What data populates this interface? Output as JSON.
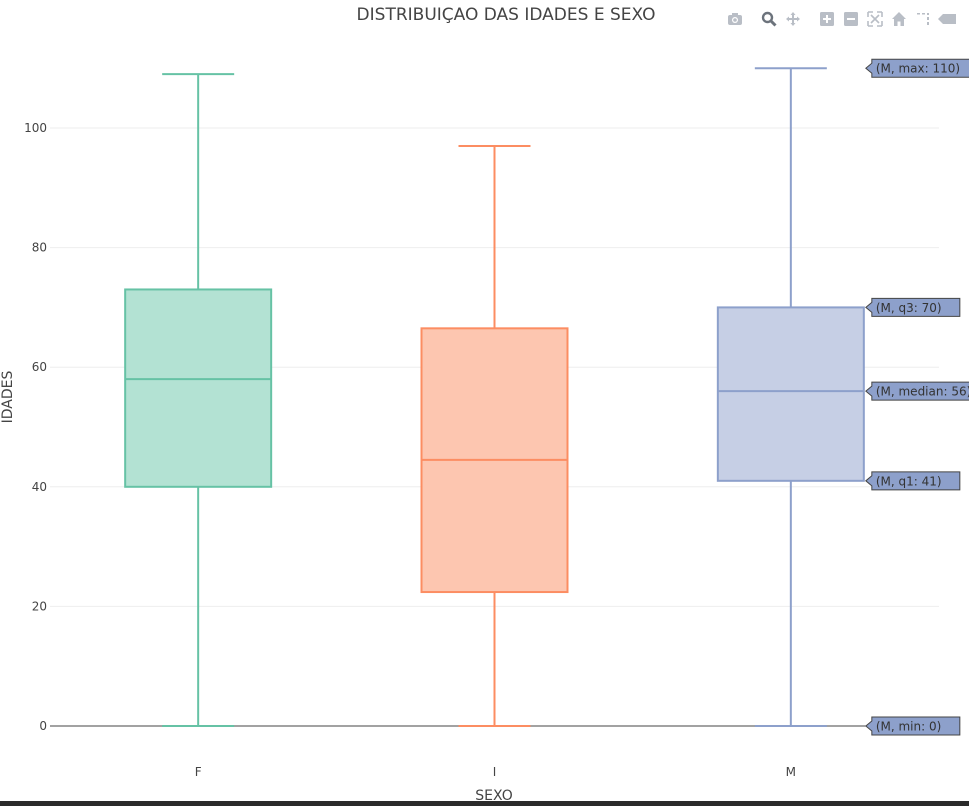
{
  "modebar": {
    "icons": [
      "camera-icon",
      "zoom-icon",
      "pan-icon",
      "zoom-in-icon",
      "zoom-out-icon",
      "autoscale-icon",
      "reset-axes-icon",
      "spike-lines-icon",
      "compare-hover-icon"
    ]
  },
  "chart_data": {
    "type": "box",
    "title": "DISTRIBUIÇAO DAS IDADES E SEXO",
    "xlabel": "SEXO",
    "ylabel": "IDADES",
    "ylim": [
      -5,
      113
    ],
    "yticks": [
      0,
      20,
      40,
      60,
      80,
      100
    ],
    "grid": true,
    "categories": [
      "F",
      "I",
      "M"
    ],
    "series": [
      {
        "category": "F",
        "min": 0,
        "q1": 40,
        "median": 58,
        "q3": 73,
        "max": 109,
        "color": "#66c2a5",
        "fill": "#b3e2d3"
      },
      {
        "category": "I",
        "min": 0,
        "q1": 22.4,
        "median": 44.5,
        "q3": 66.5,
        "max": 97,
        "color": "#fc8d62",
        "fill": "#fdc6b0"
      },
      {
        "category": "M",
        "min": 0,
        "q1": 41,
        "median": 56,
        "q3": 70,
        "max": 110,
        "color": "#8da0cb",
        "fill": "#c6cfe5"
      }
    ],
    "hover_labels": [
      {
        "text": "(M, max: 110)",
        "value": 110
      },
      {
        "text": "(M, q3: 70)",
        "value": 70
      },
      {
        "text": "(M, median: 56)",
        "value": 56
      },
      {
        "text": "(M, q1: 41)",
        "value": 41
      },
      {
        "text": "(M, min: 0)",
        "value": 0
      }
    ]
  }
}
